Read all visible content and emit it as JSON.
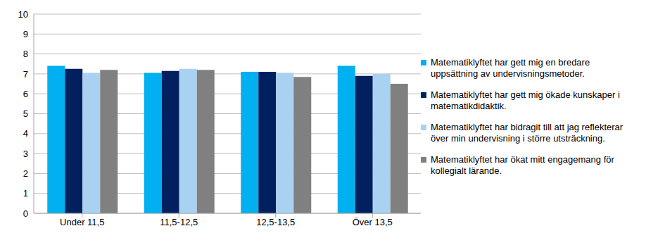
{
  "chart_data": {
    "type": "bar",
    "categories": [
      "Under 11,5",
      "11,5-12,5",
      "12,5-13,5",
      "Över 13,5"
    ],
    "series": [
      {
        "name": "Matematiklyftet har gett mig en bredare uppsättning av undervisningsmetoder.",
        "color": "#00B0F0",
        "values": [
          7.4,
          7.05,
          7.1,
          7.4
        ]
      },
      {
        "name": "Matematiklyftet har gett mig ökade kunskaper i matematikdidaktik.",
        "color": "#002060",
        "values": [
          7.25,
          7.15,
          7.1,
          6.9
        ]
      },
      {
        "name": "Matematiklyftet har bidragit till att jag reflekterar över min undervisning i större utsträckning.",
        "color": "#A9D1F2",
        "values": [
          7.05,
          7.25,
          7.05,
          7.0
        ]
      },
      {
        "name": "Matematiklyftet har ökat mitt engagemang för kollegialt lärande.",
        "color": "#808080",
        "values": [
          7.2,
          7.2,
          6.85,
          6.5
        ]
      }
    ],
    "ylim": [
      0,
      10
    ],
    "yticks": [
      0,
      1,
      2,
      3,
      4,
      5,
      6,
      7,
      8,
      9,
      10
    ],
    "grid": true,
    "legend": "right"
  }
}
